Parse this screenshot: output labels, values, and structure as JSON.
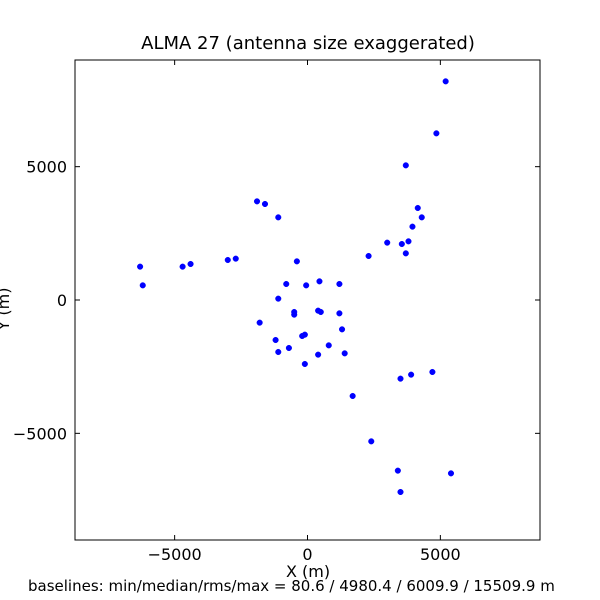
{
  "chart_data": {
    "type": "scatter",
    "title": "ALMA 27 (antenna size exaggerated)",
    "xlabel": "X (m)",
    "ylabel": "Y (m)",
    "footer": "baselines: min/median/rms/max = 80.6 / 4980.4 / 6009.9 / 15509.9 m",
    "xlim": [
      -8750,
      8750
    ],
    "ylim": [
      -9000,
      9000
    ],
    "xticks": [
      -5000,
      0,
      5000
    ],
    "yticks": [
      -5000,
      0,
      5000
    ],
    "xtick_labels": [
      "−5000",
      "0",
      "5000"
    ],
    "ytick_labels": [
      "−5000",
      "0",
      "5000"
    ],
    "grid": false,
    "marker_color": "#0000ff",
    "series": [
      {
        "x": [
          5200,
          4850,
          3700,
          4150,
          4300,
          3950,
          3800,
          3550,
          3000,
          3700,
          2300,
          -1900,
          -1600,
          -1100,
          -6300,
          -6200,
          -4700,
          -4400,
          -3000,
          -2700,
          -400,
          -800,
          450,
          -50,
          1200,
          -1100,
          -500,
          -500,
          400,
          500,
          1200,
          1300,
          -1800,
          -200,
          -100,
          -1200,
          -700,
          800,
          -1100,
          400,
          1400,
          -100,
          1700,
          4700,
          3900,
          3500,
          2400,
          3400,
          5400,
          3500
        ],
        "y": [
          8200,
          6250,
          5050,
          3450,
          3100,
          2750,
          2200,
          2100,
          2150,
          1750,
          1650,
          3700,
          3600,
          3100,
          1250,
          550,
          1250,
          1350,
          1500,
          1550,
          1450,
          600,
          700,
          550,
          600,
          50,
          -450,
          -550,
          -400,
          -450,
          -500,
          -1100,
          -850,
          -1350,
          -1300,
          -1500,
          -1800,
          -1700,
          -1950,
          -2050,
          -2000,
          -2400,
          -3600,
          -2700,
          -2800,
          -2950,
          -5300,
          -6400,
          -6500,
          -7200
        ]
      }
    ]
  }
}
